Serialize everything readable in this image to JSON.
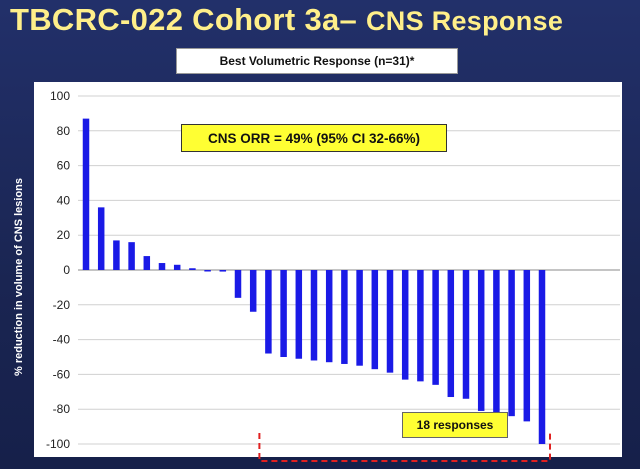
{
  "title": {
    "main": "TBCRC-022 Cohort 3a–",
    "sub": "CNS Response"
  },
  "chart_data": {
    "type": "bar",
    "title": "Best Volumetric Response (n=31)*",
    "xlabel": "",
    "ylabel": "% reduction in volume of CNS lesions",
    "ylim": [
      -105,
      100
    ],
    "yticks": [
      100,
      80,
      60,
      40,
      20,
      0,
      -20,
      -40,
      -60,
      -80,
      -100
    ],
    "grid": true,
    "values": [
      87,
      36,
      17,
      16,
      8,
      4,
      3,
      1,
      -0.7,
      -0.9,
      -16,
      -24,
      -48,
      -50,
      -51,
      -52,
      -53,
      -54,
      -55,
      -57,
      -59,
      -63,
      -64,
      -66,
      -73,
      -74,
      -81,
      -83,
      -84,
      -87,
      -100
    ],
    "bar_color": "#1a1ae6",
    "annotations": {
      "orr": "CNS ORR = 49% (95% CI 32-66%)",
      "responses": "18 responses"
    }
  }
}
